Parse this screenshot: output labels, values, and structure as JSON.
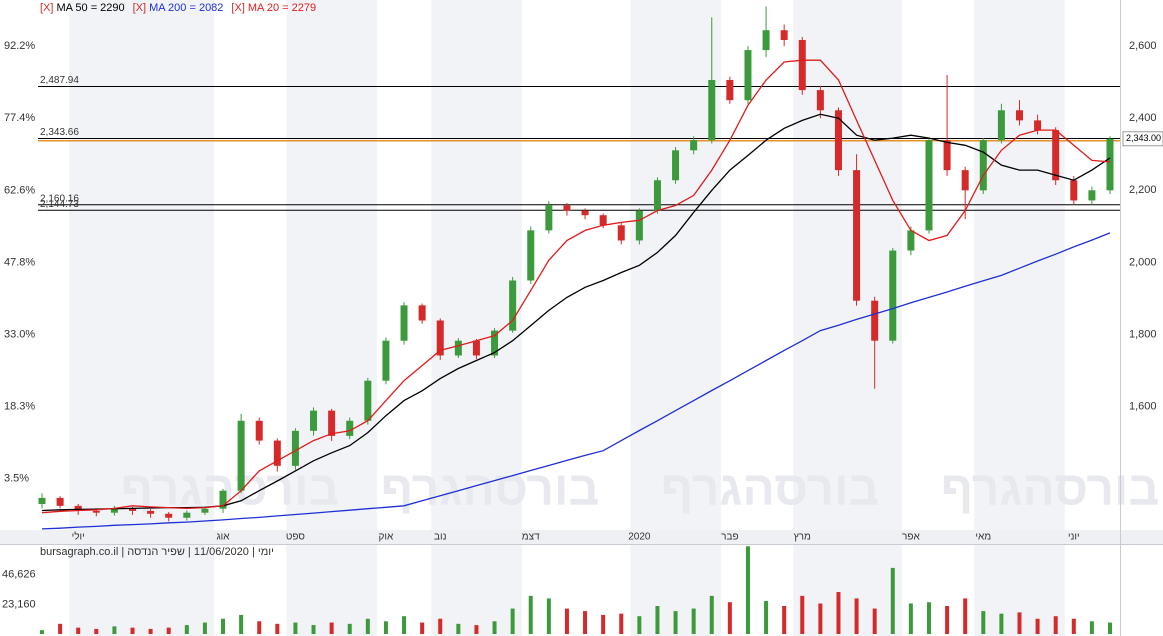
{
  "watermark": "בורסהגרף",
  "chart_data": [
    {
      "type": "candlestick",
      "categories": [
        null,
        null,
        "יולי",
        null,
        null,
        null,
        null,
        null,
        null,
        null,
        "אוג",
        null,
        null,
        null,
        "ספט",
        null,
        null,
        null,
        null,
        "אוק",
        null,
        null,
        "נוב",
        null,
        null,
        null,
        null,
        "דצמ",
        null,
        null,
        null,
        null,
        null,
        "2020",
        null,
        null,
        null,
        null,
        "פבר",
        null,
        null,
        null,
        "מרץ",
        null,
        null,
        null,
        null,
        null,
        "אפר",
        null,
        null,
        null,
        "מאי",
        null,
        null,
        null,
        null,
        "יוני",
        null,
        null
      ],
      "open": [
        1330,
        1347,
        1325,
        1311,
        1306,
        1317,
        1311,
        1303,
        1292,
        1306,
        1317,
        1367,
        1561,
        1506,
        1436,
        1533,
        1589,
        1519,
        1561,
        1672,
        1783,
        1881,
        1839,
        1742,
        1783,
        1742,
        1811,
        1950,
        2089,
        2158,
        2144,
        2131,
        2103,
        2061,
        2144,
        2228,
        2311,
        2339,
        2506,
        2450,
        2589,
        2644,
        2617,
        2478,
        2422,
        2256,
        1894,
        1783,
        2033,
        2089,
        2339,
        2256,
        2200,
        2339,
        2422,
        2394,
        2367,
        2228,
        2172,
        2200
      ],
      "high": [
        1360,
        1352,
        1330,
        1318,
        1325,
        1322,
        1316,
        1308,
        1312,
        1322,
        1372,
        1580,
        1570,
        1512,
        1540,
        1598,
        1594,
        1570,
        1680,
        1792,
        1890,
        1886,
        1845,
        1790,
        1788,
        1818,
        1960,
        2100,
        2170,
        2165,
        2150,
        2136,
        2110,
        2150,
        2236,
        2320,
        2350,
        2680,
        2515,
        2600,
        2710,
        2660,
        2625,
        2490,
        2430,
        2300,
        1905,
        2040,
        2100,
        2345,
        2520,
        2265,
        2345,
        2440,
        2450,
        2410,
        2375,
        2240,
        2210,
        2350
      ],
      "low": [
        1318,
        1318,
        1300,
        1296,
        1298,
        1300,
        1292,
        1282,
        1284,
        1300,
        1305,
        1360,
        1495,
        1420,
        1425,
        1520,
        1505,
        1510,
        1550,
        1662,
        1772,
        1830,
        1730,
        1735,
        1732,
        1735,
        1805,
        1940,
        2080,
        2130,
        2120,
        2095,
        2050,
        2050,
        2135,
        2218,
        2300,
        2330,
        2440,
        2440,
        2570,
        2600,
        2465,
        2400,
        2240,
        1880,
        1650,
        1775,
        2020,
        2080,
        2240,
        2120,
        2190,
        2330,
        2380,
        2355,
        2215,
        2160,
        2160,
        2190
      ],
      "close": [
        1347,
        1325,
        1311,
        1306,
        1317,
        1311,
        1303,
        1292,
        1306,
        1317,
        1367,
        1561,
        1506,
        1436,
        1533,
        1589,
        1519,
        1561,
        1672,
        1783,
        1881,
        1839,
        1742,
        1783,
        1742,
        1811,
        1950,
        2089,
        2158,
        2144,
        2131,
        2103,
        2061,
        2144,
        2228,
        2311,
        2339,
        2506,
        2450,
        2589,
        2644,
        2617,
        2478,
        2422,
        2256,
        1894,
        1783,
        2033,
        2089,
        2339,
        2256,
        2200,
        2339,
        2422,
        2394,
        2367,
        2228,
        2172,
        2200,
        2343
      ],
      "up_color": "#3c9a3c",
      "down_color": "#d42a2a",
      "series": [
        {
          "toggle": "[X]",
          "name": "MA 50 = 2290",
          "color": "#000000",
          "values": [
            1312,
            1314,
            1315,
            1316,
            1317,
            1318,
            1319,
            1320,
            1320,
            1321,
            1325,
            1339,
            1367,
            1394,
            1422,
            1450,
            1472,
            1492,
            1528,
            1575,
            1617,
            1644,
            1678,
            1706,
            1728,
            1750,
            1783,
            1825,
            1867,
            1903,
            1931,
            1950,
            1972,
            1992,
            2028,
            2075,
            2139,
            2200,
            2256,
            2297,
            2339,
            2372,
            2394,
            2411,
            2400,
            2353,
            2339,
            2345,
            2353,
            2345,
            2333,
            2325,
            2306,
            2270,
            2256,
            2256,
            2242,
            2228,
            2256,
            2290
          ]
        },
        {
          "toggle": "[X]",
          "name": "MA 200 = 2082",
          "color": "#1f2fd6",
          "values": [
            1261,
            1263,
            1266,
            1268,
            1271,
            1273,
            1275,
            1278,
            1280,
            1283,
            1286,
            1290,
            1293,
            1297,
            1301,
            1305,
            1309,
            1313,
            1317,
            1321,
            1325,
            1339,
            1353,
            1367,
            1381,
            1395,
            1409,
            1423,
            1437,
            1451,
            1465,
            1478,
            1506,
            1534,
            1561,
            1589,
            1617,
            1645,
            1672,
            1700,
            1728,
            1756,
            1783,
            1811,
            1826,
            1842,
            1857,
            1872,
            1888,
            1903,
            1918,
            1934,
            1949,
            1964,
            1984,
            2004,
            2023,
            2043,
            2062,
            2082
          ]
        },
        {
          "toggle": "[X]",
          "name": "MA 20 = 2279",
          "color": "#e01b1b",
          "values": [
            1306,
            1310,
            1312,
            1314,
            1318,
            1325,
            1322,
            1320,
            1318,
            1320,
            1325,
            1367,
            1422,
            1450,
            1478,
            1506,
            1525,
            1533,
            1561,
            1617,
            1672,
            1714,
            1756,
            1769,
            1783,
            1797,
            1839,
            1922,
            2006,
            2061,
            2089,
            2103,
            2111,
            2117,
            2144,
            2158,
            2186,
            2256,
            2339,
            2436,
            2506,
            2556,
            2561,
            2561,
            2506,
            2394,
            2283,
            2172,
            2089,
            2061,
            2075,
            2144,
            2242,
            2311,
            2353,
            2367,
            2367,
            2325,
            2283,
            2279
          ]
        }
      ],
      "levels": [
        {
          "value": 2487.94,
          "label": "2,487.94"
        },
        {
          "value": 2343.66,
          "label": "2,343.66"
        },
        {
          "value": 2160.16,
          "label": "2,160.16"
        },
        {
          "value": 2144.73,
          "label": "2,144.73"
        }
      ],
      "last_price": {
        "value": 2343,
        "label": "2,343.00",
        "color": "#e8912a"
      },
      "ylim": [
        1258,
        2714
      ],
      "yticks": [
        {
          "value": 1600,
          "label": "1,600"
        },
        {
          "value": 1800,
          "label": "1,800"
        },
        {
          "value": 2000,
          "label": "2,000"
        },
        {
          "value": 2200,
          "label": "2,200"
        },
        {
          "value": 2400,
          "label": "2,400"
        },
        {
          "value": 2600,
          "label": "2,600"
        }
      ],
      "y2lim": [
        -7.0,
        100.6
      ],
      "y2ticks": [
        {
          "value": 3.5,
          "label": "3.5%"
        },
        {
          "value": 18.3,
          "label": "18.3%"
        },
        {
          "value": 33.0,
          "label": "33.0%"
        },
        {
          "value": 47.8,
          "label": "47.8%"
        },
        {
          "value": 62.6,
          "label": "62.6%"
        },
        {
          "value": 77.4,
          "label": "77.4%"
        },
        {
          "value": 92.2,
          "label": "92.2%"
        }
      ],
      "grid": false
    },
    {
      "type": "bar",
      "title": "יומי | 11/06/2020 | שפיר הנדסה | bursagraph.co.il",
      "values": [
        3000,
        8000,
        5000,
        4000,
        6000,
        5000,
        4000,
        5000,
        7000,
        9000,
        12000,
        15000,
        10000,
        8000,
        9000,
        7000,
        9000,
        8000,
        12000,
        10000,
        14000,
        9000,
        12000,
        8000,
        7000,
        10000,
        20000,
        30000,
        28000,
        20000,
        18000,
        15000,
        16000,
        14000,
        22000,
        18000,
        20000,
        30000,
        25000,
        69000,
        26000,
        22000,
        30000,
        24000,
        33000,
        28000,
        20000,
        52000,
        24000,
        25000,
        22000,
        28000,
        18000,
        16000,
        17000,
        12000,
        14000,
        12000,
        10000,
        9000
      ],
      "ylim": [
        0,
        70000
      ],
      "yticks": [
        {
          "value": 23160,
          "label": "23,160"
        },
        {
          "value": 46626,
          "label": "46,626"
        }
      ]
    }
  ]
}
